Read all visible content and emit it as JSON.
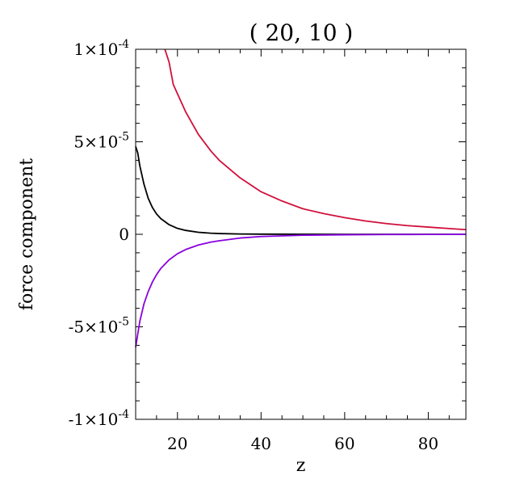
{
  "chart_data": {
    "type": "line",
    "title": "( 20, 10 )",
    "xlabel": "z",
    "ylabel": "force component",
    "xlim": [
      10,
      89
    ],
    "ylim": [
      -0.0001,
      0.0001
    ],
    "grid": false,
    "x_ticks": [
      {
        "value": 20,
        "label": "20"
      },
      {
        "value": 40,
        "label": "40"
      },
      {
        "value": 60,
        "label": "60"
      },
      {
        "value": 80,
        "label": "80"
      }
    ],
    "y_ticks": [
      {
        "value": 0.0001,
        "mantissa": "1",
        "exp": "-4"
      },
      {
        "value": 5e-05,
        "mantissa": "5",
        "exp": "-5"
      },
      {
        "value": 0,
        "label": "0"
      },
      {
        "value": -5e-05,
        "mantissa": "-5",
        "exp": "-5"
      },
      {
        "value": -0.0001,
        "mantissa": "-1",
        "exp": "-4"
      }
    ],
    "series": [
      {
        "color": "#d0103a",
        "x": [
          17,
          18,
          19,
          20,
          22,
          25,
          28,
          30,
          35,
          40,
          45,
          50,
          55,
          60,
          65,
          70,
          75,
          80,
          85,
          89
        ],
        "y": [
          0.0001,
          9.3e-05,
          8.1e-05,
          7.6e-05,
          6.6e-05,
          5.4e-05,
          4.5e-05,
          4e-05,
          3.05e-05,
          2.3e-05,
          1.8e-05,
          1.38e-05,
          1.12e-05,
          9e-06,
          7.2e-06,
          5.8e-06,
          4.7e-06,
          3.9e-06,
          3.1e-06,
          2.5e-06
        ]
      },
      {
        "color": "#000000",
        "x": [
          10,
          10.5,
          11,
          12,
          13,
          14,
          15,
          16,
          18,
          20,
          22,
          25,
          28,
          30,
          35,
          40,
          50,
          60,
          70,
          80,
          89
        ],
        "y": [
          4.75e-05,
          4.4e-05,
          3.7e-05,
          2.7e-05,
          1.95e-05,
          1.45e-05,
          1.1e-05,
          8.5e-06,
          5.2e-06,
          3.2e-06,
          2.1e-06,
          1.1e-06,
          6e-07,
          4e-07,
          1.5e-07,
          8e-08,
          3e-08,
          1e-08,
          0,
          0,
          0
        ]
      },
      {
        "color": "#8b00e0",
        "x": [
          10,
          10.5,
          11,
          12,
          13,
          14,
          15,
          16,
          18,
          20,
          22,
          25,
          28,
          30,
          35,
          40,
          50,
          60,
          70,
          80,
          89
        ],
        "y": [
          -6.1e-05,
          -5.4e-05,
          -4.7e-05,
          -3.75e-05,
          -3.1e-05,
          -2.58e-05,
          -2.18e-05,
          -1.85e-05,
          -1.38e-05,
          -1.05e-05,
          -8.2e-06,
          -5.8e-06,
          -4.2e-06,
          -3.5e-06,
          -2e-06,
          -1.2e-06,
          -5e-07,
          -2.5e-07,
          -1.2e-07,
          -6e-08,
          -3e-08
        ]
      }
    ]
  }
}
